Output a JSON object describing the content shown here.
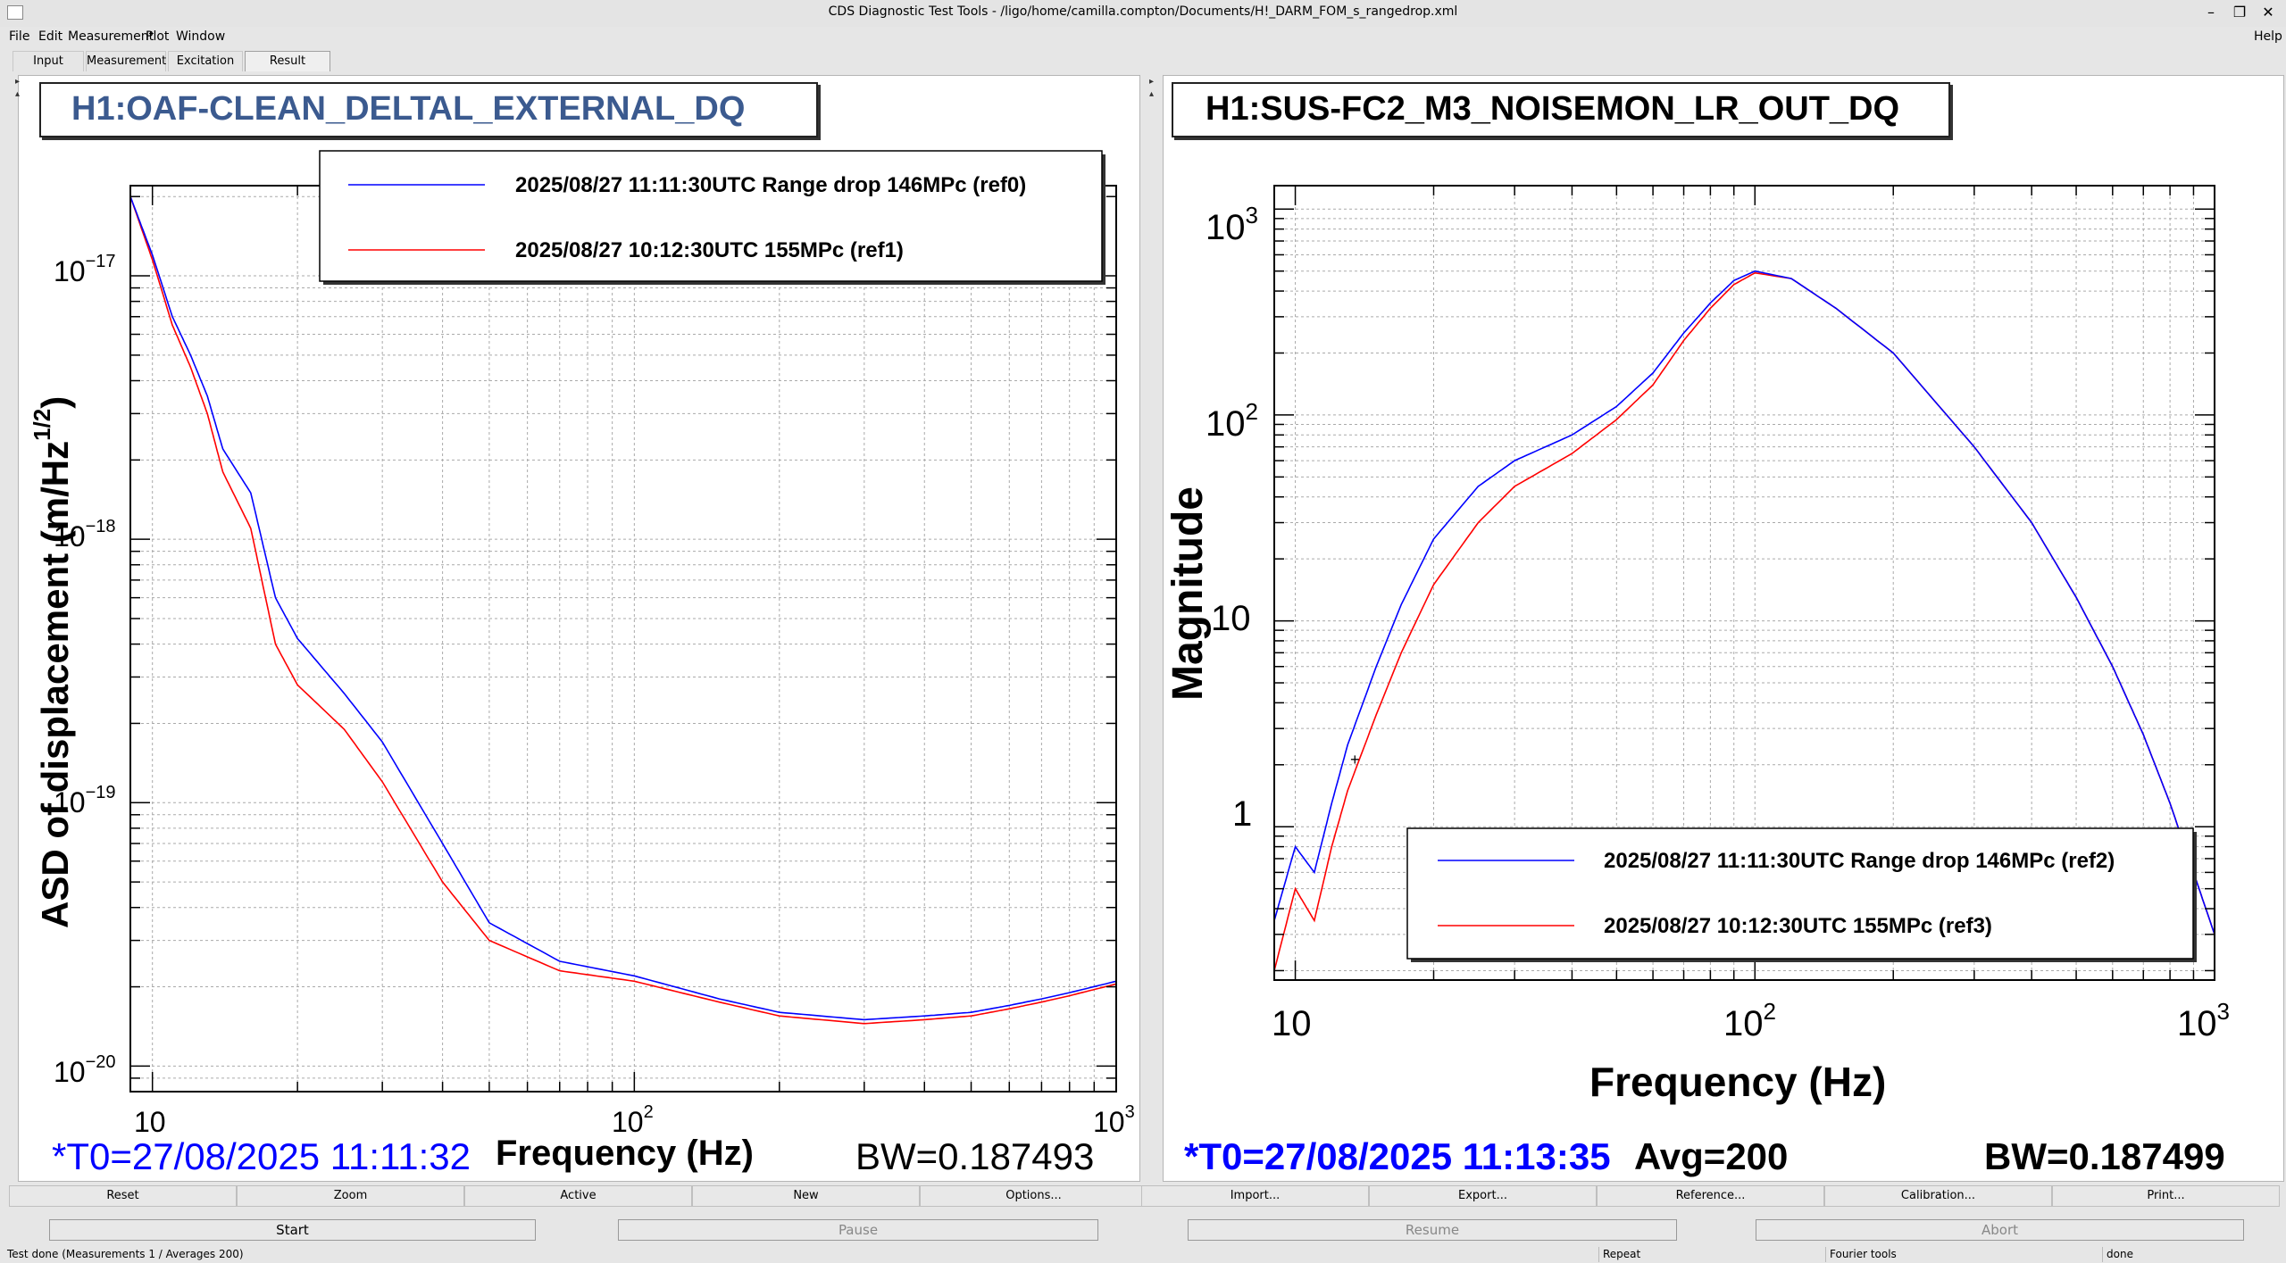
{
  "window": {
    "title": "CDS Diagnostic Test Tools - /ligo/home/camilla.compton/Documents/H!_DARM_FOM_s_rangedrop.xml"
  },
  "menu": {
    "file": "File",
    "edit": "Edit",
    "measurement": "Measurement",
    "plot": "Plot",
    "window": "Window",
    "help": "Help"
  },
  "tabs": {
    "input": "Input",
    "measurement": "Measurement",
    "excitation": "Excitation",
    "result": "Result"
  },
  "left_plot": {
    "channel": "H1:OAF-CLEAN_DELTAL_EXTERNAL_DQ",
    "ylabel": "ASD of displacement (m/Hz",
    "ylabel_sup": "1/2",
    "ylabel_close": ")",
    "xlabel": "Frequency (Hz)",
    "y_ticks": {
      "m17": "10",
      "m17e": "−17",
      "m18": "10",
      "m18e": "−18",
      "m19": "10",
      "m19e": "−19",
      "m20": "10",
      "m20e": "−20"
    },
    "x_ticks": {
      "t10": "10",
      "t100": "10",
      "t100e": "2",
      "t1000": "10",
      "t1000e": "3"
    },
    "legend": [
      {
        "label": "2025/08/27 11:11:30UTC Range drop 146MPc (ref0)",
        "color": "#0000ff"
      },
      {
        "label": "2025/08/27 10:12:30UTC 155MPc (ref1)",
        "color": "#ff0000"
      }
    ],
    "t0": "*T0=27/08/2025 11:11:32",
    "bw": "BW=0.187493"
  },
  "right_plot": {
    "channel": "H1:SUS-FC2_M3_NOISEMON_LR_OUT_DQ",
    "ylabel": "Magnitude",
    "xlabel": "Frequency (Hz)",
    "y_ticks": {
      "t1000": "10",
      "t1000e": "3",
      "t100": "10",
      "t100e": "2",
      "t10": "10",
      "t1": "1"
    },
    "x_ticks": {
      "t10": "10",
      "t100": "10",
      "t100e": "2",
      "t1000": "10",
      "t1000e": "3"
    },
    "legend": [
      {
        "label": "2025/08/27 11:11:30UTC Range drop 146MPc (ref2)",
        "color": "#0000ff"
      },
      {
        "label": "2025/08/27 10:12:30UTC 155MPc (ref3)",
        "color": "#ff0000"
      }
    ],
    "t0": "*T0=27/08/2025 11:13:35",
    "avg": "Avg=200",
    "bw": "BW=0.187499"
  },
  "chart_data": [
    {
      "type": "line",
      "title": "H1:OAF-CLEAN_DELTAL_EXTERNAL_DQ",
      "xlabel": "Frequency (Hz)",
      "ylabel": "ASD of displacement (m/Hz^1/2)",
      "xscale": "log",
      "yscale": "log",
      "xlim": [
        9,
        1000
      ],
      "ylim": [
        8e-21,
        2.2e-17
      ],
      "grid": true,
      "legend_position": "top-right",
      "series": [
        {
          "name": "2025/08/27 11:11:30UTC Range drop 146MPc (ref0)",
          "color": "#0000ff",
          "x": [
            9,
            10,
            11,
            12,
            13,
            14,
            16,
            18,
            20,
            25,
            30,
            40,
            50,
            70,
            100,
            150,
            200,
            300,
            400,
            500,
            600,
            700,
            800,
            1000
          ],
          "y": [
            2e-17,
            1.2e-17,
            7e-18,
            5e-18,
            3.5e-18,
            2.2e-18,
            1.5e-18,
            6e-19,
            4.2e-19,
            2.6e-19,
            1.7e-19,
            7e-20,
            3.5e-20,
            2.5e-20,
            2.2e-20,
            1.8e-20,
            1.6e-20,
            1.5e-20,
            1.55e-20,
            1.6e-20,
            1.7e-20,
            1.8e-20,
            1.9e-20,
            2.1e-20
          ]
        },
        {
          "name": "2025/08/27 10:12:30UTC 155MPc (ref1)",
          "color": "#ff0000",
          "x": [
            9,
            10,
            11,
            12,
            13,
            14,
            16,
            18,
            20,
            25,
            30,
            40,
            50,
            70,
            100,
            150,
            200,
            300,
            400,
            500,
            600,
            700,
            800,
            1000
          ],
          "y": [
            2e-17,
            1.15e-17,
            6.5e-18,
            4.5e-18,
            3e-18,
            1.8e-18,
            1.1e-18,
            4e-19,
            2.8e-19,
            1.9e-19,
            1.2e-19,
            5e-20,
            3e-20,
            2.3e-20,
            2.1e-20,
            1.75e-20,
            1.55e-20,
            1.45e-20,
            1.5e-20,
            1.55e-20,
            1.65e-20,
            1.75e-20,
            1.85e-20,
            2.05e-20
          ]
        }
      ]
    },
    {
      "type": "line",
      "title": "H1:SUS-FC2_M3_NOISEMON_LR_OUT_DQ",
      "xlabel": "Frequency (Hz)",
      "ylabel": "Magnitude",
      "xscale": "log",
      "yscale": "log",
      "xlim": [
        9,
        1000
      ],
      "ylim": [
        0.18,
        1300
      ],
      "grid": true,
      "legend_position": "bottom-right",
      "series": [
        {
          "name": "2025/08/27 11:11:30UTC Range drop 146MPc (ref2)",
          "color": "#0000ff",
          "x": [
            9,
            10,
            11,
            12,
            13,
            15,
            17,
            20,
            25,
            30,
            40,
            50,
            60,
            70,
            80,
            90,
            100,
            120,
            150,
            200,
            300,
            400,
            500,
            600,
            700,
            800,
            900,
            1000
          ],
          "y": [
            0.35,
            0.8,
            0.6,
            1.3,
            2.5,
            6,
            12,
            25,
            45,
            60,
            80,
            110,
            160,
            250,
            350,
            450,
            500,
            460,
            330,
            200,
            70,
            30,
            13,
            6,
            2.8,
            1.3,
            0.6,
            0.3
          ]
        },
        {
          "name": "2025/08/27 10:12:30UTC 155MPc (ref3)",
          "color": "#ff0000",
          "x": [
            9,
            10,
            11,
            12,
            13,
            15,
            17,
            20,
            25,
            30,
            40,
            50,
            60,
            70,
            80,
            90,
            100,
            120,
            150,
            200,
            300,
            400,
            500,
            600,
            700,
            800,
            900,
            1000
          ],
          "y": [
            0.2,
            0.5,
            0.35,
            0.8,
            1.5,
            3.5,
            7,
            15,
            30,
            45,
            65,
            95,
            140,
            230,
            330,
            430,
            490,
            460,
            330,
            200,
            70,
            30,
            13,
            6,
            2.8,
            1.3,
            0.6,
            0.3
          ]
        }
      ]
    }
  ],
  "buttons_left": [
    "Reset",
    "Zoom",
    "Active",
    "New",
    "Options..."
  ],
  "buttons_right": [
    "Import...",
    "Export...",
    "Reference...",
    "Calibration...",
    "Print..."
  ],
  "controls": {
    "start": "Start",
    "pause": "Pause",
    "resume": "Resume",
    "abort": "Abort"
  },
  "status": {
    "main": "Test done (Measurements 1 / Averages 200)",
    "repeat": "Repeat",
    "fourier": "Fourier tools",
    "done": "done"
  }
}
